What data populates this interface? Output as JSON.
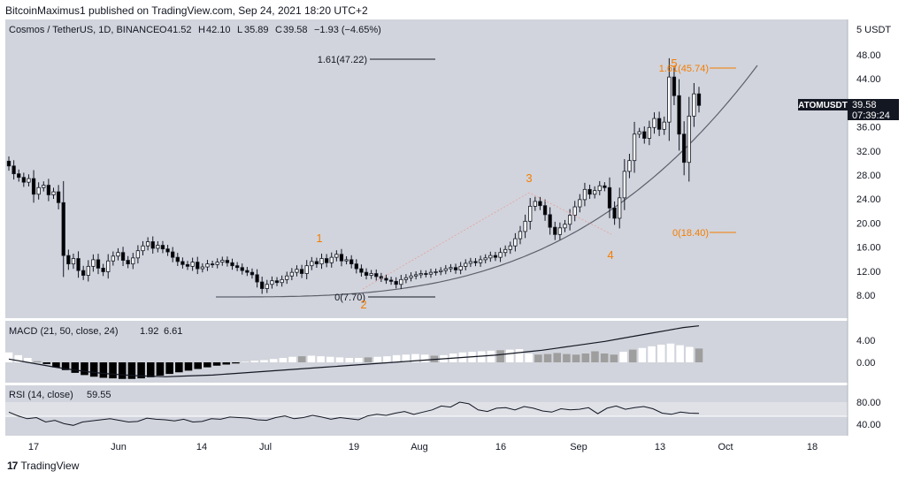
{
  "header": {
    "published": "BitcoinMaximus1 published on TradingView.com, Sep 24, 2021 18:20 UTC+2"
  },
  "legend": {
    "symbol": "Cosmos / TetherUS, 1D, BINANCE",
    "o_label": "O",
    "o_value": "41.52",
    "h_label": "H",
    "h_value": "42.10",
    "l_label": "L",
    "l_value": "35.89",
    "c_label": "C",
    "c_value": "39.58",
    "change": "−1.93 (−4.65%)"
  },
  "price_label": {
    "ticker": "ATOMUSDT",
    "price": "39.58",
    "countdown": "07:39:24"
  },
  "currency": "5 USDT",
  "colors": {
    "background": "#d1d4dc",
    "up_candle": "#ffffff",
    "down_candle": "#000000",
    "wave_label": "#f57c00",
    "hist_dark": "#000000",
    "hist_light": "#ffffff",
    "hist_gray": "#9e9e9e"
  },
  "fib_left": {
    "top_label": "1.61(47.22)",
    "bottom_label": "0(7.70)"
  },
  "fib_right": {
    "top_label": "1.61(45.74)",
    "bottom_label": "0(18.40)"
  },
  "waves": [
    "1",
    "2",
    "3",
    "4",
    "5"
  ],
  "macd": {
    "label": "MACD (21, 50, close, 24)",
    "v1": "1.92",
    "v2": "6.61",
    "ticks": [
      "4.00",
      "0.00"
    ]
  },
  "rsi": {
    "label": "RSI (14, close)",
    "value": "59.55",
    "ticks": [
      "80.00",
      "40.00"
    ]
  },
  "chart_data": {
    "type": "candlestick",
    "price_ticks": [
      48,
      44,
      40,
      36,
      32,
      28,
      24,
      20,
      16,
      12,
      8
    ],
    "ylim": [
      5,
      51
    ],
    "x_tick_labels": [
      "17",
      "Jun",
      "14",
      "Jul",
      "19",
      "Aug",
      "16",
      "Sep",
      "13",
      "Oct",
      "18"
    ],
    "close_series": [
      29.5,
      28.2,
      27.6,
      26.8,
      27.4,
      24.8,
      25.9,
      26.3,
      24.7,
      25.2,
      23.4,
      14.6,
      13.2,
      14.1,
      12.1,
      11.3,
      12.8,
      13.9,
      12.5,
      11.9,
      13.7,
      14.5,
      15.1,
      13.8,
      13.2,
      14.2,
      15.4,
      16.2,
      16.9,
      15.8,
      16.3,
      15.7,
      15.2,
      14.3,
      13.6,
      13.1,
      12.8,
      13.5,
      12.4,
      12.7,
      13.2,
      13.1,
      13.5,
      13.8,
      13.4,
      12.9,
      12.6,
      12.1,
      11.8,
      11.4,
      10.2,
      9.1,
      9.8,
      10.4,
      10.1,
      10.6,
      11.2,
      11.8,
      12.3,
      11.6,
      12.9,
      13.6,
      13.2,
      14.1,
      13.4,
      14.3,
      14.8,
      13.7,
      13.9,
      13.2,
      12.4,
      11.8,
      11.3,
      11.6,
      11.1,
      10.8,
      10.5,
      10.3,
      9.8,
      10.6,
      10.9,
      11.2,
      11.4,
      11.6,
      11.5,
      11.8,
      11.9,
      12.1,
      12.4,
      12.6,
      12.2,
      12.8,
      13.3,
      13.6,
      13.4,
      13.9,
      14.2,
      14.6,
      14.3,
      15.1,
      15.6,
      16.2,
      17.4,
      18.6,
      20.3,
      22.8,
      23.6,
      22.9,
      21.4,
      19.3,
      18.1,
      19.2,
      19.8,
      21.3,
      22.7,
      23.9,
      25.6,
      24.8,
      25.4,
      26.2,
      25.9,
      22.5,
      20.8,
      24.2,
      28.6,
      30.4,
      34.8,
      35.2,
      34.1,
      35.9,
      37.4,
      35.6,
      36.8,
      44.3,
      41.2,
      34.8,
      30.1,
      37.8,
      41.5,
      39.58
    ],
    "macd_hist": [
      1.8,
      1.3,
      0.8,
      0.2,
      -0.3,
      -0.9,
      -1.4,
      -1.9,
      -2.3,
      -2.6,
      -2.8,
      -2.9,
      -3.0,
      -3.0,
      -2.9,
      -2.7,
      -2.4,
      -2.1,
      -1.8,
      -1.5,
      -1.2,
      -0.9,
      -0.6,
      -0.4,
      -0.2,
      0.1,
      0.3,
      0.4,
      0.6,
      0.8,
      1.0,
      1.1,
      1.2,
      1.1,
      1.0,
      0.9,
      0.8,
      0.8,
      0.9,
      1.0,
      1.1,
      1.3,
      1.4,
      1.5,
      1.4,
      1.2,
      1.3,
      1.6,
      1.8,
      1.9,
      2.0,
      2.1,
      2.2,
      2.3,
      2.4,
      1.6,
      1.4,
      1.5,
      1.7,
      1.5,
      1.4,
      1.6,
      2.0,
      1.6,
      1.4,
      1.9,
      2.3,
      2.6,
      2.9,
      3.2,
      3.4,
      3.1,
      2.8,
      2.5
    ],
    "macd_line": [
      0.6,
      0.1,
      -0.4,
      -0.9,
      -1.3,
      -1.7,
      -2.0,
      -2.2,
      -2.4,
      -2.5,
      -2.6,
      -2.5,
      -2.4,
      -2.3,
      -2.1,
      -1.9,
      -1.7,
      -1.5,
      -1.3,
      -1.1,
      -0.9,
      -0.7,
      -0.5,
      -0.3,
      -0.1,
      0.1,
      0.3,
      0.5,
      0.7,
      0.9,
      1.1,
      1.3,
      1.6,
      1.9,
      2.2,
      2.6,
      3.0,
      3.4,
      3.8,
      4.3,
      4.8,
      5.3,
      5.8,
      6.3,
      6.61
    ],
    "rsi_series": [
      62,
      55,
      50,
      52,
      44,
      47,
      41,
      38,
      44,
      46,
      48,
      50,
      47,
      44,
      45,
      51,
      49,
      48,
      46,
      49,
      44,
      45,
      50,
      49,
      53,
      52,
      51,
      48,
      47,
      52,
      55,
      50,
      52,
      56,
      53,
      49,
      52,
      50,
      48,
      55,
      58,
      56,
      60,
      63,
      58,
      62,
      66,
      73,
      71,
      80,
      77,
      66,
      63,
      69,
      70,
      66,
      72,
      69,
      64,
      62,
      68,
      66,
      67,
      70,
      59,
      69,
      73,
      67,
      70,
      72,
      68,
      60,
      58,
      62,
      60,
      59.55
    ]
  }
}
